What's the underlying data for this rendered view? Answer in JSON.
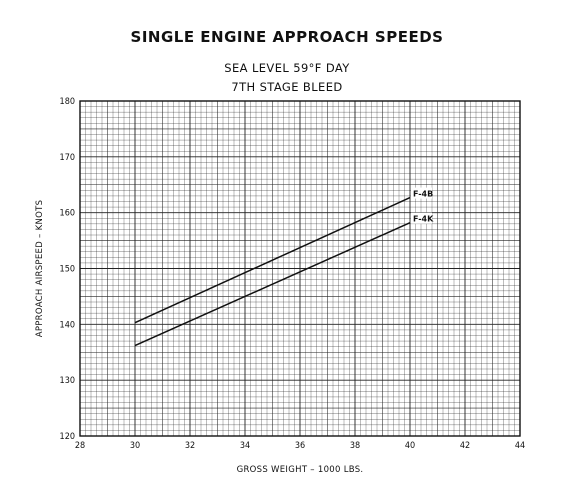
{
  "chart_data": {
    "type": "line",
    "title": "SINGLE ENGINE APPROACH SPEEDS",
    "subtitle_lines": [
      "SEA LEVEL 59°F DAY",
      "7TH STAGE BLEED"
    ],
    "xlabel": "GROSS WEIGHT – 1000 LBS.",
    "ylabel": "APPROACH AIRSPEED – KNOTS",
    "xlim": [
      28,
      44
    ],
    "ylim": [
      120,
      180
    ],
    "x_ticks": [
      28,
      30,
      32,
      34,
      36,
      38,
      40,
      42,
      44
    ],
    "y_ticks": [
      120,
      130,
      140,
      150,
      160,
      170,
      180
    ],
    "grid": true,
    "series": [
      {
        "name": "F-4B",
        "x": [
          30,
          40
        ],
        "y": [
          140.3,
          162.7
        ]
      },
      {
        "name": "F-4K",
        "x": [
          30,
          40
        ],
        "y": [
          136.2,
          158.2
        ]
      }
    ]
  }
}
